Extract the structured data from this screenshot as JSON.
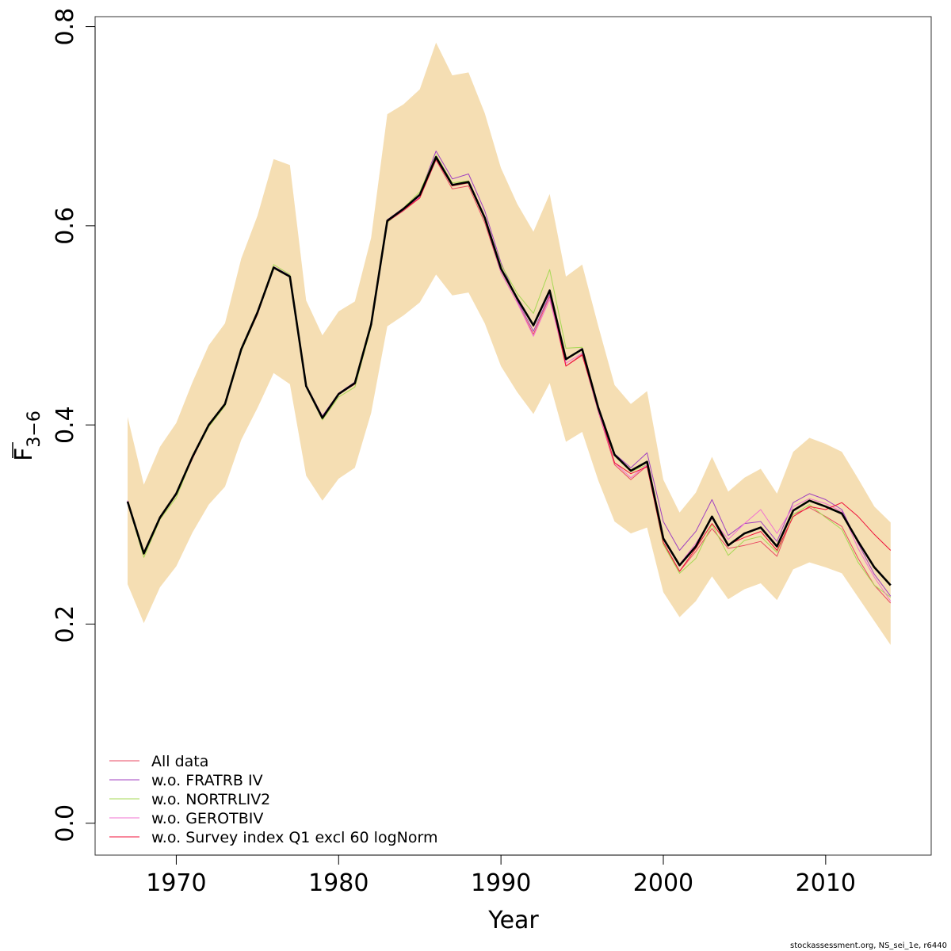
{
  "chart_data": {
    "type": "line",
    "xlabel": "Year",
    "ylabel_main": "F",
    "ylabel_sub": "3−6",
    "xlim": [
      1965,
      2016.5
    ],
    "ylim": [
      -0.032,
      0.81
    ],
    "xticks": [
      1970,
      1980,
      1990,
      2000,
      2010
    ],
    "xtick_labels": [
      "1970",
      "1980",
      "1990",
      "2000",
      "2010"
    ],
    "yticks": [
      0.0,
      0.2,
      0.4,
      0.6,
      0.8
    ],
    "ytick_labels": [
      "0.0",
      "0.2",
      "0.4",
      "0.6",
      "0.8"
    ],
    "grid": false,
    "legend_position": "bottom-left",
    "band_color": "#F5DEB3",
    "x": [
      1967,
      1968,
      1969,
      1970,
      1971,
      1972,
      1973,
      1974,
      1975,
      1976,
      1977,
      1978,
      1979,
      1980,
      1981,
      1982,
      1983,
      1984,
      1985,
      1986,
      1987,
      1988,
      1989,
      1990,
      1991,
      1992,
      1993,
      1994,
      1995,
      1996,
      1997,
      1998,
      1999,
      2000,
      2001,
      2002,
      2003,
      2004,
      2005,
      2006,
      2007,
      2008,
      2009,
      2010,
      2011,
      2012,
      2013,
      2014
    ],
    "band_upper": [
      0.408,
      0.34,
      0.378,
      0.402,
      0.443,
      0.48,
      0.502,
      0.567,
      0.61,
      0.667,
      0.661,
      0.525,
      0.49,
      0.514,
      0.524,
      0.588,
      0.712,
      0.722,
      0.737,
      0.784,
      0.751,
      0.754,
      0.713,
      0.658,
      0.622,
      0.594,
      0.632,
      0.549,
      0.561,
      0.499,
      0.44,
      0.421,
      0.434,
      0.345,
      0.312,
      0.332,
      0.368,
      0.333,
      0.347,
      0.356,
      0.331,
      0.373,
      0.387,
      0.381,
      0.373,
      0.346,
      0.318,
      0.302
    ],
    "band_lower": [
      0.24,
      0.201,
      0.237,
      0.258,
      0.292,
      0.32,
      0.338,
      0.385,
      0.417,
      0.452,
      0.441,
      0.349,
      0.324,
      0.346,
      0.357,
      0.412,
      0.499,
      0.51,
      0.523,
      0.551,
      0.53,
      0.533,
      0.502,
      0.459,
      0.433,
      0.411,
      0.442,
      0.383,
      0.393,
      0.344,
      0.303,
      0.291,
      0.297,
      0.232,
      0.207,
      0.223,
      0.248,
      0.225,
      0.235,
      0.241,
      0.224,
      0.255,
      0.262,
      0.257,
      0.251,
      0.227,
      0.203,
      0.179
    ],
    "series": [
      {
        "name": "All data",
        "color": "#E94A63",
        "width": 1,
        "values": [
          0.323,
          0.271,
          0.307,
          0.33,
          0.366,
          0.4,
          0.42,
          0.475,
          0.512,
          0.558,
          0.549,
          0.439,
          0.407,
          0.431,
          0.441,
          0.5,
          0.604,
          0.615,
          0.628,
          0.666,
          0.637,
          0.64,
          0.603,
          0.553,
          0.523,
          0.491,
          0.529,
          0.459,
          0.471,
          0.413,
          0.36,
          0.345,
          0.359,
          0.28,
          0.253,
          0.273,
          0.296,
          0.276,
          0.279,
          0.283,
          0.268,
          0.31,
          0.317,
          0.308,
          0.298,
          0.266,
          0.239,
          0.221
        ]
      },
      {
        "name": "w.o. FRATRB IV",
        "color": "#A040C0",
        "width": 1,
        "values": [
          0.324,
          0.272,
          0.308,
          0.331,
          0.368,
          0.401,
          0.421,
          0.476,
          0.513,
          0.559,
          0.55,
          0.44,
          0.409,
          0.432,
          0.443,
          0.502,
          0.606,
          0.618,
          0.632,
          0.675,
          0.647,
          0.652,
          0.615,
          0.563,
          0.525,
          0.494,
          0.531,
          0.465,
          0.477,
          0.419,
          0.371,
          0.357,
          0.372,
          0.303,
          0.274,
          0.293,
          0.325,
          0.289,
          0.301,
          0.303,
          0.283,
          0.322,
          0.331,
          0.325,
          0.315,
          0.281,
          0.25,
          0.228
        ]
      },
      {
        "name": "w.o. NORTRLIV2",
        "color": "#A6D854",
        "width": 1,
        "values": [
          0.322,
          0.267,
          0.305,
          0.327,
          0.367,
          0.398,
          0.419,
          0.474,
          0.511,
          0.561,
          0.551,
          0.438,
          0.405,
          0.428,
          0.438,
          0.498,
          0.603,
          0.618,
          0.634,
          0.671,
          0.643,
          0.645,
          0.608,
          0.561,
          0.532,
          0.512,
          0.556,
          0.477,
          0.478,
          0.419,
          0.369,
          0.353,
          0.36,
          0.28,
          0.251,
          0.266,
          0.3,
          0.269,
          0.284,
          0.288,
          0.272,
          0.31,
          0.32,
          0.307,
          0.295,
          0.262,
          0.239,
          0.227
        ]
      },
      {
        "name": "w.o. GEROTBIV",
        "color": "#F070D0",
        "width": 1,
        "values": [
          0.324,
          0.271,
          0.307,
          0.331,
          0.367,
          0.4,
          0.421,
          0.475,
          0.512,
          0.558,
          0.549,
          0.44,
          0.408,
          0.432,
          0.442,
          0.5,
          0.604,
          0.616,
          0.629,
          0.668,
          0.641,
          0.643,
          0.607,
          0.553,
          0.523,
          0.489,
          0.526,
          0.462,
          0.472,
          0.414,
          0.362,
          0.347,
          0.36,
          0.286,
          0.26,
          0.281,
          0.306,
          0.285,
          0.301,
          0.315,
          0.291,
          0.318,
          0.326,
          0.321,
          0.313,
          0.276,
          0.247,
          0.223
        ]
      },
      {
        "name": "w.o. Survey index Q1 excl 60 logNorm",
        "color": "#F0103A",
        "width": 1,
        "values": [
          0.323,
          0.27,
          0.306,
          0.33,
          0.367,
          0.399,
          0.42,
          0.475,
          0.511,
          0.558,
          0.549,
          0.439,
          0.407,
          0.431,
          0.441,
          0.5,
          0.604,
          0.616,
          0.628,
          0.667,
          0.64,
          0.643,
          0.607,
          0.557,
          0.526,
          0.499,
          0.534,
          0.459,
          0.47,
          0.417,
          0.362,
          0.351,
          0.358,
          0.282,
          0.253,
          0.276,
          0.301,
          0.28,
          0.287,
          0.293,
          0.274,
          0.308,
          0.318,
          0.315,
          0.322,
          0.308,
          0.29,
          0.274
        ]
      },
      {
        "color": "#000000",
        "width": 2.6,
        "values": [
          0.323,
          0.271,
          0.307,
          0.331,
          0.368,
          0.4,
          0.421,
          0.476,
          0.513,
          0.558,
          0.549,
          0.439,
          0.407,
          0.431,
          0.442,
          0.501,
          0.605,
          0.617,
          0.631,
          0.669,
          0.641,
          0.644,
          0.608,
          0.557,
          0.527,
          0.5,
          0.535,
          0.466,
          0.476,
          0.417,
          0.37,
          0.354,
          0.363,
          0.286,
          0.259,
          0.278,
          0.308,
          0.279,
          0.291,
          0.297,
          0.278,
          0.314,
          0.324,
          0.318,
          0.311,
          0.283,
          0.257,
          0.239
        ]
      }
    ]
  },
  "footer": "stockassessment.org, NS_sei_1e, r6440"
}
